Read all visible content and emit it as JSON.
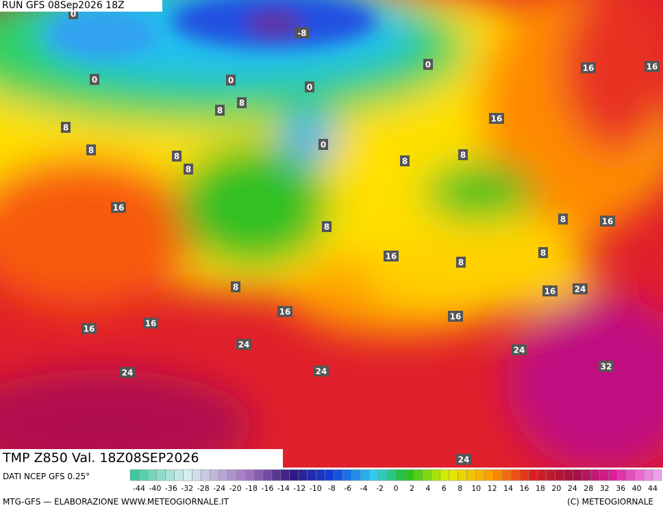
{
  "header": {
    "run": "RUN GFS 08Sep2026 18Z"
  },
  "map": {
    "labels": [
      "0",
      "-8",
      "0",
      "16",
      "16",
      "0",
      "0",
      "0",
      "8",
      "8",
      "8",
      "16",
      "0",
      "8",
      "8",
      "8",
      "8",
      "8",
      "16",
      "8",
      "16",
      "8",
      "16",
      "8",
      "8",
      "8",
      "16",
      "24",
      "16",
      "16",
      "16",
      "16",
      "24",
      "24",
      "32",
      "24",
      "24",
      "24"
    ]
  },
  "footer": {
    "title": "TMP Z850 Val. 18Z08SEP2026",
    "source": "DATI NCEP GFS 0.25°",
    "credit": "MTG-GFS — ELABORAZIONE WWW.METEOGIORNALE.IT",
    "copyright": "(C) METEOGIORNALE",
    "scale": [
      -44,
      -40,
      -36,
      -32,
      -28,
      -24,
      -20,
      -18,
      -16,
      -14,
      -12,
      -10,
      -8,
      -6,
      -4,
      -2,
      0,
      2,
      4,
      6,
      8,
      10,
      12,
      14,
      16,
      18,
      20,
      24,
      28,
      32,
      36,
      40,
      44
    ]
  }
}
